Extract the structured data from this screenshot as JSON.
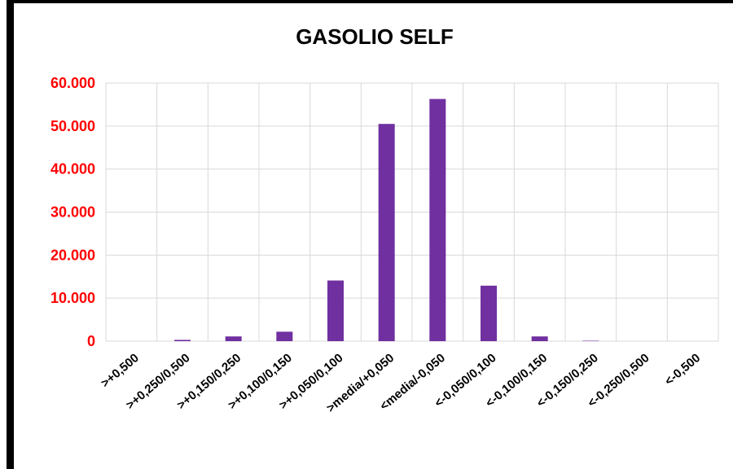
{
  "chart_data": {
    "type": "bar",
    "title": "GASOLIO SELF",
    "xlabel": "",
    "ylabel": "",
    "categories": [
      ">+0,500",
      ">+0,250/0,500",
      ">+0,150/0,250",
      ">+0,100/0,150",
      ">+0,050/0,100",
      ">media/+0,050",
      "<media/-0,050",
      "<-0,050/0,100",
      "<-0,100/0,150",
      "<-0,150/0,250",
      "<-0,250/0,500",
      "<-0,500"
    ],
    "values": [
      0,
      300,
      1100,
      2200,
      14100,
      50500,
      56300,
      12900,
      1100,
      100,
      0,
      0
    ],
    "ylim": [
      0,
      60000
    ],
    "yticks": [
      "0",
      "10.000",
      "20.000",
      "30.000",
      "40.000",
      "50.000",
      "60.000"
    ],
    "grid": true,
    "bar_color": "#7030a0",
    "ytick_color": "#ff0000"
  }
}
